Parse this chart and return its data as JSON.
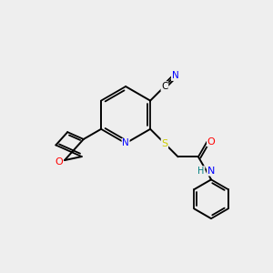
{
  "background_color": "#eeeeee",
  "bond_color": "#000000",
  "atom_colors": {
    "N": "#0000ff",
    "O": "#ff0000",
    "S": "#cccc00",
    "C": "#000000",
    "H": "#008080"
  },
  "figsize": [
    3.0,
    3.0
  ],
  "dpi": 100,
  "lw_single": 1.4,
  "lw_double": 1.3,
  "font_size": 7.5
}
